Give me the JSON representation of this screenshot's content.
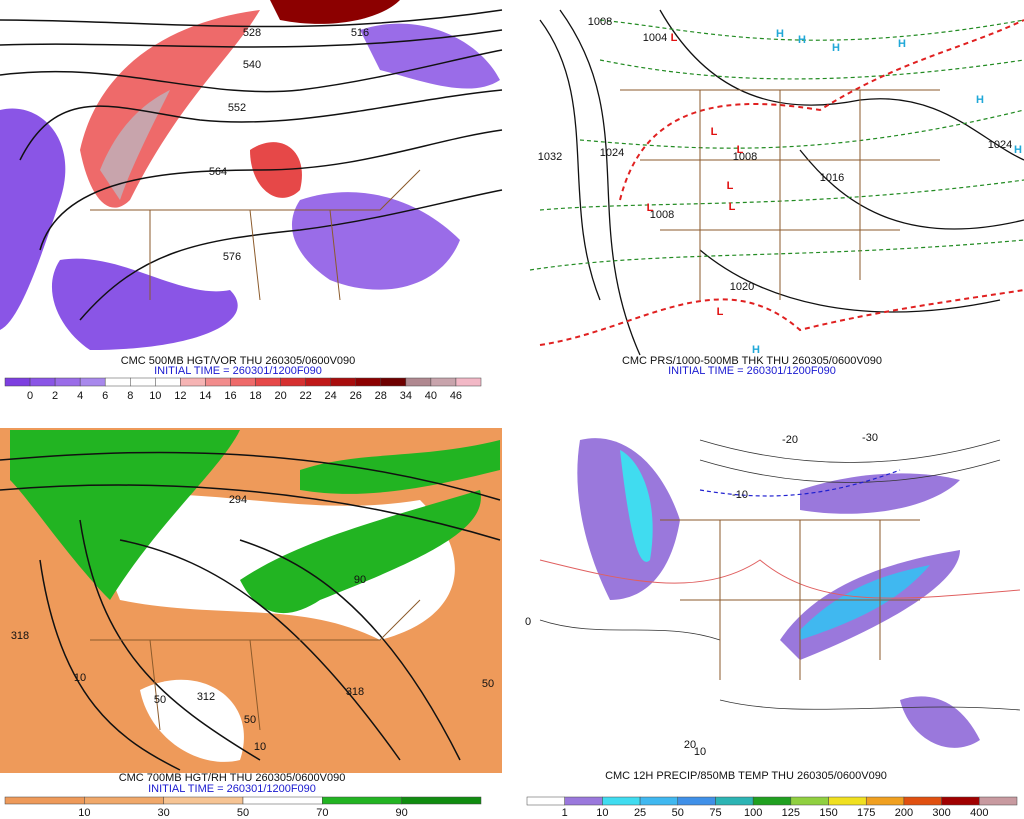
{
  "panels": [
    {
      "caption": "CMC 500MB HGT/VOR THU 260305/0600V090",
      "initial_time": "INITIAL TIME = 260301/1200F090",
      "map_labels": [
        "528",
        "516",
        "540",
        "552",
        "564",
        "576"
      ],
      "colorbar": {
        "labels": [
          "0",
          "2",
          "4",
          "6",
          "8",
          "10",
          "12",
          "14",
          "16",
          "18",
          "20",
          "22",
          "24",
          "26",
          "28",
          "34",
          "40",
          "46"
        ],
        "colors": [
          "#7d3fe0",
          "#8a55e6",
          "#9a6ce8",
          "#a888ec",
          "#ffffff",
          "#ffffff",
          "#ffffff",
          "#f6b4b4",
          "#f28c8c",
          "#ee6a6a",
          "#e64848",
          "#d63030",
          "#c01818",
          "#a80c0c",
          "#8c0000",
          "#6e0000",
          "#b08890",
          "#c8a4ac",
          "#f2b8c6"
        ]
      }
    },
    {
      "caption": "CMC PRS/1000-500MB THK THU 260305/0600V090",
      "initial_time": "INITIAL TIME = 260301/1200F090",
      "map_labels": [
        "1008",
        "1004",
        "1032",
        "1024",
        "1024",
        "1008",
        "1008",
        "1016",
        "1020",
        "L",
        "L",
        "L",
        "L",
        "L",
        "L",
        "L",
        "H",
        "H",
        "H",
        "H",
        "H",
        "H",
        "H"
      ]
    },
    {
      "caption": "CMC 700MB HGT/RH THU 260305/0600V090",
      "initial_time": "INITIAL TIME = 260301/1200F090",
      "map_labels": [
        "318",
        "312",
        "294",
        "10",
        "50",
        "90",
        "50",
        "318",
        "50",
        "10"
      ],
      "colorbar": {
        "labels": [
          "10",
          "30",
          "50",
          "70",
          "90"
        ],
        "colors": [
          "#ee9a5a",
          "#f0a86a",
          "#f6c494",
          "#ffffff",
          "#22b422",
          "#108c10"
        ]
      }
    },
    {
      "caption": "CMC 12H PRECIP/850MB TEMP THU 260305/0600V090",
      "map_labels": [
        "-10",
        "-30",
        "-20",
        "0",
        "10",
        "20"
      ],
      "colorbar": {
        "labels": [
          "1",
          "10",
          "25",
          "50",
          "75",
          "100",
          "125",
          "150",
          "175",
          "200",
          "300",
          "400"
        ],
        "colors": [
          "#ffffff",
          "#9a78dc",
          "#40dcf0",
          "#40b8f0",
          "#4090e8",
          "#2cb4b4",
          "#20a020",
          "#90d040",
          "#f0e020",
          "#f0a020",
          "#e05010",
          "#a00000",
          "#c89aa0"
        ]
      }
    }
  ]
}
